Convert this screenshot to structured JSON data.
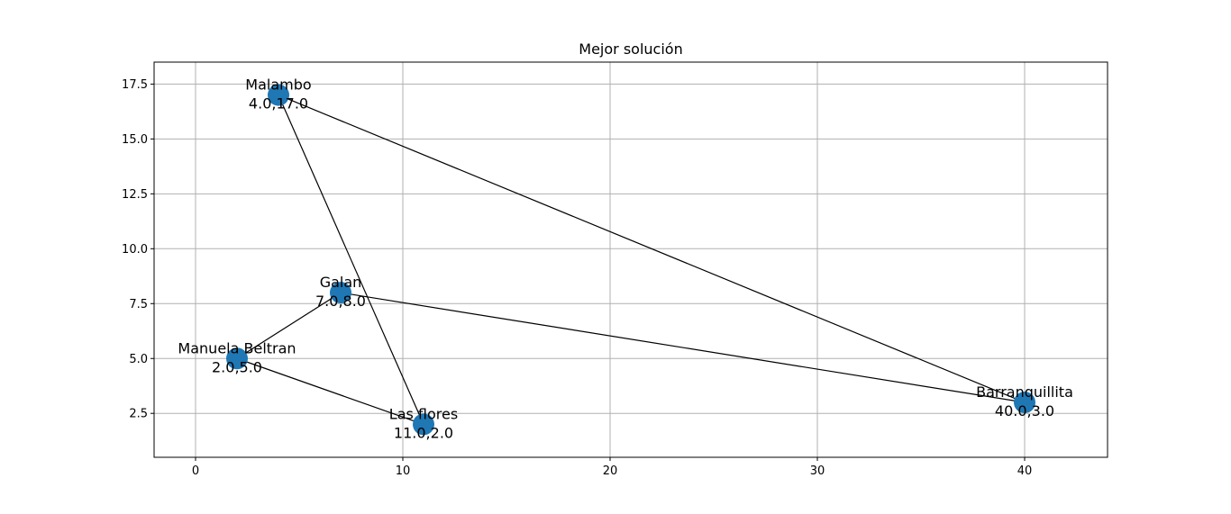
{
  "chart_data": {
    "type": "scatter",
    "title": "Mejor solución",
    "xlabel": "",
    "ylabel": "",
    "xlim": [
      -2,
      44
    ],
    "ylim": [
      0.5,
      18.5
    ],
    "xticks": [
      0,
      10,
      20,
      30,
      40
    ],
    "yticks": [
      2.5,
      5.0,
      7.5,
      10.0,
      12.5,
      15.0,
      17.5
    ],
    "xtick_labels": [
      "0",
      "10",
      "20",
      "30",
      "40"
    ],
    "ytick_labels": [
      "2.5",
      "5.0",
      "7.5",
      "10.0",
      "12.5",
      "15.0",
      "17.5"
    ],
    "grid": true,
    "marker_color": "#1f77b4",
    "line_color": "#000000",
    "points": [
      {
        "name": "Malambo",
        "x": 4.0,
        "y": 17.0,
        "coord_label": "4.0,17.0"
      },
      {
        "name": "Galan",
        "x": 7.0,
        "y": 8.0,
        "coord_label": "7.0,8.0"
      },
      {
        "name": "Manuela Beltran",
        "x": 2.0,
        "y": 5.0,
        "coord_label": "2.0,5.0"
      },
      {
        "name": "Las flores",
        "x": 11.0,
        "y": 2.0,
        "coord_label": "11.0,2.0"
      },
      {
        "name": "Barranquillita",
        "x": 40.0,
        "y": 3.0,
        "coord_label": "40.0,3.0"
      }
    ],
    "route": [
      [
        4.0,
        17.0
      ],
      [
        11.0,
        2.0
      ],
      [
        2.0,
        5.0
      ],
      [
        7.0,
        8.0
      ],
      [
        40.0,
        3.0
      ],
      [
        4.0,
        17.0
      ]
    ]
  }
}
